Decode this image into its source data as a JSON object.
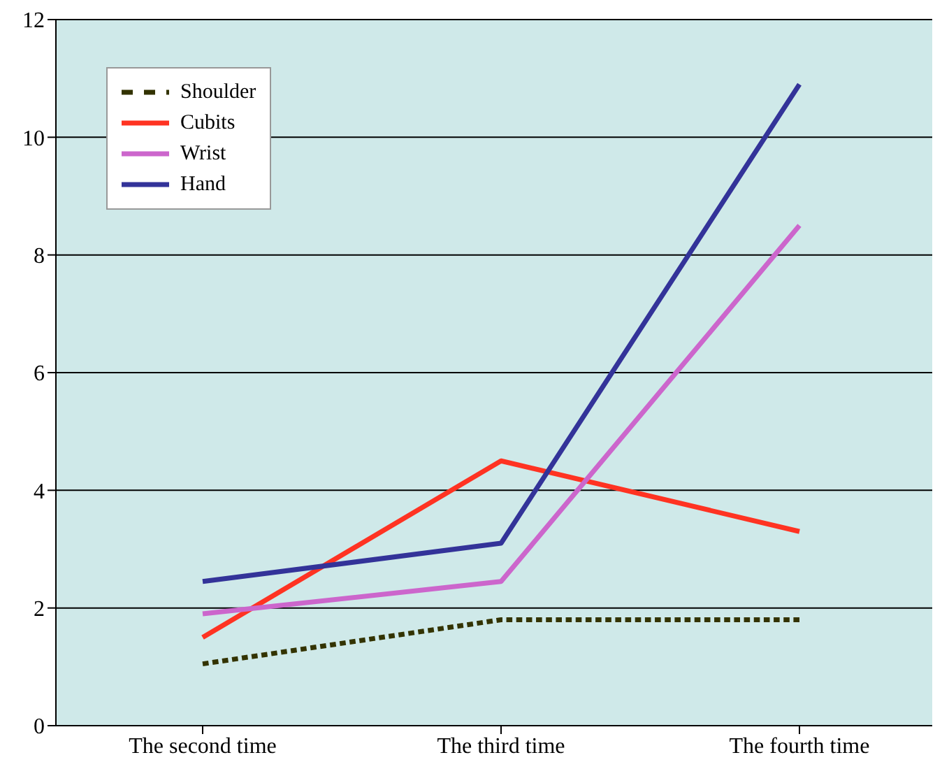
{
  "chart_data": {
    "type": "line",
    "categories": [
      "The second time",
      "The third time",
      "The fourth time"
    ],
    "series": [
      {
        "name": "Shoulder",
        "color": "#333300",
        "values": [
          1.05,
          1.8,
          1.8
        ],
        "line_style": "dashed"
      },
      {
        "name": "Cubits",
        "color": "#ff3322",
        "values": [
          1.5,
          4.5,
          3.3
        ]
      },
      {
        "name": "Wrist",
        "color": "#cc66cc",
        "values": [
          1.9,
          2.45,
          8.5
        ]
      },
      {
        "name": "Hand",
        "color": "#333399",
        "values": [
          2.45,
          3.1,
          10.9
        ]
      }
    ],
    "ylim": [
      0,
      12
    ],
    "yticks": [
      0,
      2,
      4,
      6,
      8,
      10,
      12
    ],
    "grid": "y",
    "legend": "top left",
    "marker": "none",
    "line_style": "solid"
  }
}
